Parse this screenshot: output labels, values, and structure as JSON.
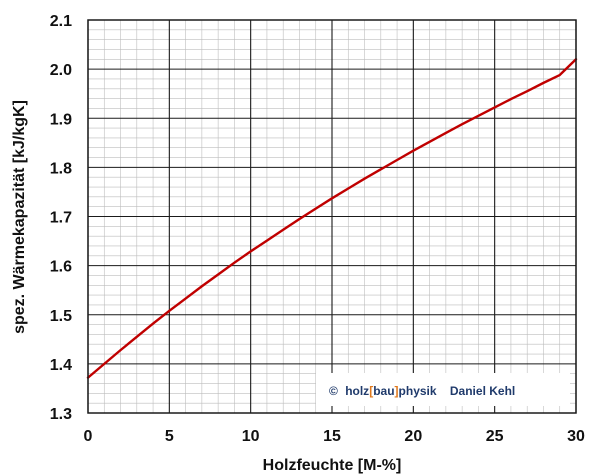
{
  "chart_data": {
    "type": "line",
    "xlabel": "Holzfeuchte [M-%]",
    "ylabel": "spez. Wärmekapazität [kJ/kgK]",
    "xlim": [
      0,
      30
    ],
    "ylim": [
      1.3,
      2.1
    ],
    "x_ticks": [
      "0",
      "5",
      "10",
      "15",
      "20",
      "25",
      "30"
    ],
    "y_ticks": [
      "1.3",
      "1.4",
      "1.5",
      "1.6",
      "1.7",
      "1.8",
      "1.9",
      "2.0",
      "2.1"
    ],
    "grid": true,
    "series": [
      {
        "color": "#c00000",
        "x": [
          0,
          1,
          2,
          3,
          4,
          5,
          6,
          7,
          8,
          9,
          10,
          11,
          12,
          13,
          14,
          15,
          16,
          17,
          18,
          19,
          20,
          21,
          22,
          23,
          24,
          25,
          26,
          27,
          28,
          29,
          30
        ],
        "y": [
          1.372,
          1.4,
          1.428,
          1.455,
          1.482,
          1.508,
          1.533,
          1.558,
          1.582,
          1.606,
          1.629,
          1.651,
          1.673,
          1.695,
          1.716,
          1.737,
          1.757,
          1.777,
          1.796,
          1.815,
          1.834,
          1.852,
          1.87,
          1.888,
          1.905,
          1.922,
          1.939,
          1.955,
          1.972,
          1.988,
          2.02
        ]
      }
    ]
  },
  "credit": {
    "copyright": "©",
    "holz": "holz",
    "bracket_open": "[",
    "bau": "bau",
    "bracket_close": "]",
    "physik": "physik",
    "author": "Daniel Kehl",
    "colors": {
      "dark": "#1f3a6b",
      "accent": "#e07a1f"
    }
  }
}
